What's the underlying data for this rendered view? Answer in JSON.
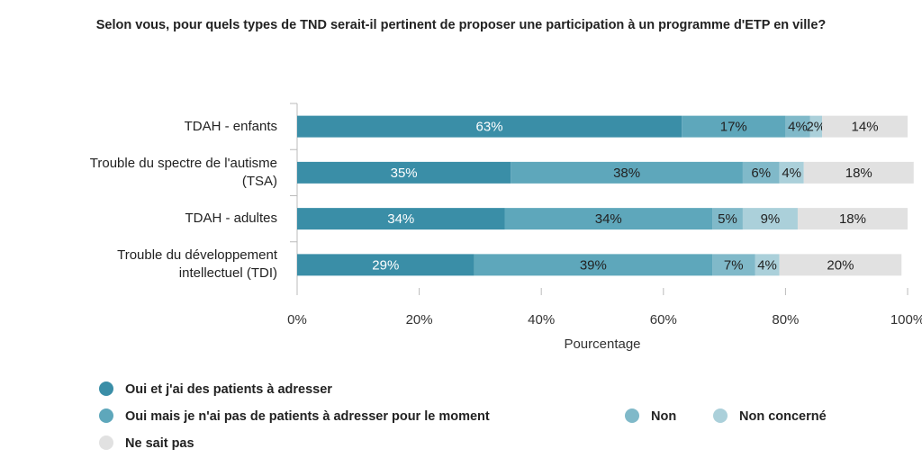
{
  "chart_data": {
    "type": "stacked-barh",
    "title": "Selon vous, pour quels types de TND serait-il pertinent de proposer une participation à un programme d'ETP en ville?",
    "xlabel": "Pourcentage",
    "categories": [
      "TDAH - enfants",
      "Trouble du spectre de l'autisme\n(TSA)",
      "TDAH - adultes",
      "Trouble du développement\nintellectuel (TDI)"
    ],
    "series": [
      {
        "name": "Oui et j'ai des patients à adresser",
        "color": "#3a8ea7",
        "values": [
          63,
          35,
          34,
          29
        ],
        "value_labels": [
          "63%",
          "35%",
          "34%",
          "29%"
        ]
      },
      {
        "name": "Oui mais je n'ai pas de patients à adresser pour le moment",
        "color": "#5ea7bb",
        "values": [
          17,
          38,
          34,
          39
        ],
        "value_labels": [
          "17%",
          "38%",
          "34%",
          "39%"
        ]
      },
      {
        "name": "Non",
        "color": "#80b9c9",
        "values": [
          4,
          6,
          5,
          7
        ],
        "value_labels": [
          "4%",
          "6%",
          "5%",
          "7%"
        ]
      },
      {
        "name": "Non concerné",
        "color": "#abd0da",
        "values": [
          2,
          4,
          9,
          4
        ],
        "value_labels": [
          "2%",
          "4%",
          "9%",
          "4%"
        ]
      },
      {
        "name": "Ne sait pas",
        "color": "#e1e1e1",
        "values": [
          14,
          18,
          18,
          20
        ],
        "value_labels": [
          "14%",
          "18%",
          "18%",
          "20%"
        ]
      }
    ],
    "xlim": [
      0,
      100
    ],
    "xticks": [
      {
        "value": 0,
        "label": "0%"
      },
      {
        "value": 20,
        "label": "20%"
      },
      {
        "value": 40,
        "label": "40%"
      },
      {
        "value": 60,
        "label": "60%"
      },
      {
        "value": 80,
        "label": "80%"
      },
      {
        "value": 100,
        "label": "100%"
      }
    ],
    "legend": "bottom-left"
  }
}
